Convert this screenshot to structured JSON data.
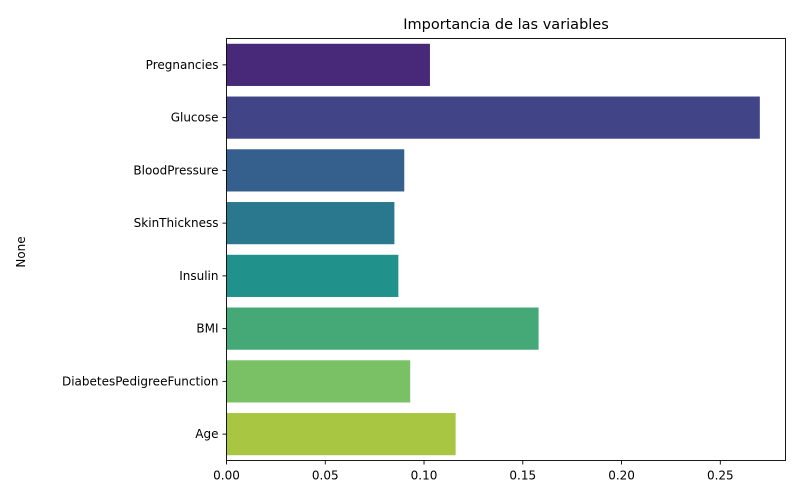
{
  "chart_data": {
    "type": "bar",
    "orientation": "horizontal",
    "title": "Importancia de las variables",
    "xlabel": "",
    "ylabel": "None",
    "categories": [
      "Pregnancies",
      "Glucose",
      "BloodPressure",
      "SkinThickness",
      "Insulin",
      "BMI",
      "DiabetesPedigreeFunction",
      "Age"
    ],
    "values": [
      0.103,
      0.27,
      0.09,
      0.085,
      0.087,
      0.158,
      0.093,
      0.116
    ],
    "colors": [
      "#472d7b",
      "#3b528b",
      "#2c728e",
      "#21918c",
      "#28ae80",
      "#5ec962",
      "#addc30",
      "#fde725"
    ],
    "bar_colors_observed": [
      "#482979",
      "#414487",
      "#355f8d",
      "#2a788e",
      "#21918c",
      "#44a977",
      "#7ac165",
      "#a8c641"
    ],
    "xlim": [
      0.0,
      0.283
    ],
    "xticks": [
      0.0,
      0.05,
      0.1,
      0.15,
      0.2,
      0.25
    ],
    "xtick_labels": [
      "0.00",
      "0.05",
      "0.10",
      "0.15",
      "0.20",
      "0.25"
    ],
    "grid": false,
    "legend": false
  }
}
